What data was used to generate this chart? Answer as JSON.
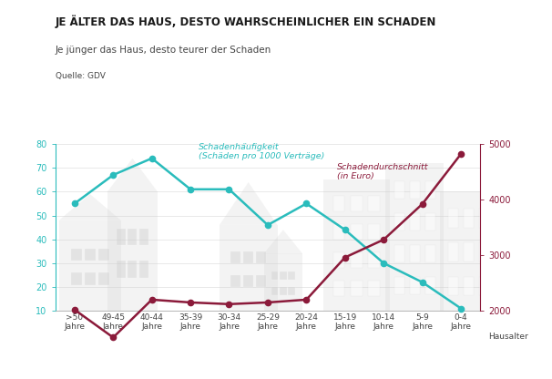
{
  "categories": [
    ">50\nJahre",
    "49-45\nJahre",
    "40-44\nJahre",
    "35-39\nJahre",
    "30-34\nJahre",
    "25-29\nJahre",
    "20-24\nJahre",
    "15-19\nJahre",
    "10-14\nJahre",
    "5-9\nJahre",
    "0-4\nJahre"
  ],
  "haufigkeit": [
    55,
    67,
    74,
    61,
    61,
    46,
    55,
    44,
    30,
    22,
    11
  ],
  "durchschnitt": [
    2020,
    1520,
    2200,
    2150,
    2120,
    2150,
    2200,
    2960,
    3280,
    3920,
    4820
  ],
  "haufigkeit_color": "#2ABCBC",
  "durchschnitt_color": "#8B1A3A",
  "background_color": "#FFFFFF",
  "title": "JE ÄLTER DAS HAUS, DESTO WAHRSCHEINLICHER EIN SCHADEN",
  "subtitle": "Je jünger das Haus, desto teurer der Schaden",
  "source": "Quelle: GDV",
  "ylim_left": [
    10,
    80
  ],
  "ylim_right": [
    2000,
    5000
  ],
  "yticks_left": [
    10,
    20,
    30,
    40,
    50,
    60,
    70,
    80
  ],
  "yticks_right": [
    2000,
    3000,
    4000,
    5000
  ],
  "label_haufigkeit": "Schadenhäufigkeit\n(Schäden pro 1000 Verträge)",
  "label_durchschnitt": "Schadendurchschnitt\n(in Euro)",
  "xlabel": "Hausalter"
}
